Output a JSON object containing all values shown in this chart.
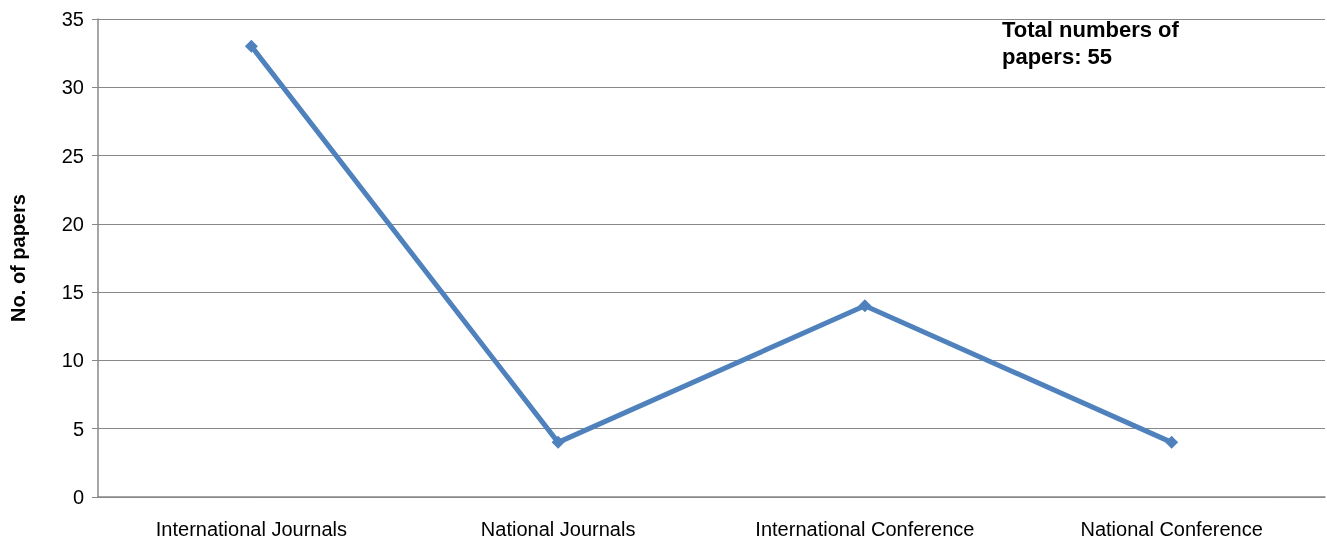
{
  "chart_data": {
    "type": "line",
    "ylabel": "No. of papers",
    "categories": [
      "International Journals",
      "National Journals",
      "International Conference",
      "National Conference"
    ],
    "series": [
      {
        "color": "#4f81bd",
        "values": [
          33,
          4,
          14,
          4
        ]
      }
    ],
    "ylim": [
      0,
      35
    ],
    "yticks": [
      0,
      5,
      10,
      15,
      20,
      25,
      30,
      35
    ],
    "grid": "y",
    "marker": "diamond",
    "line_style": "solid",
    "annotations": [
      "Total numbers of papers: 55"
    ]
  }
}
